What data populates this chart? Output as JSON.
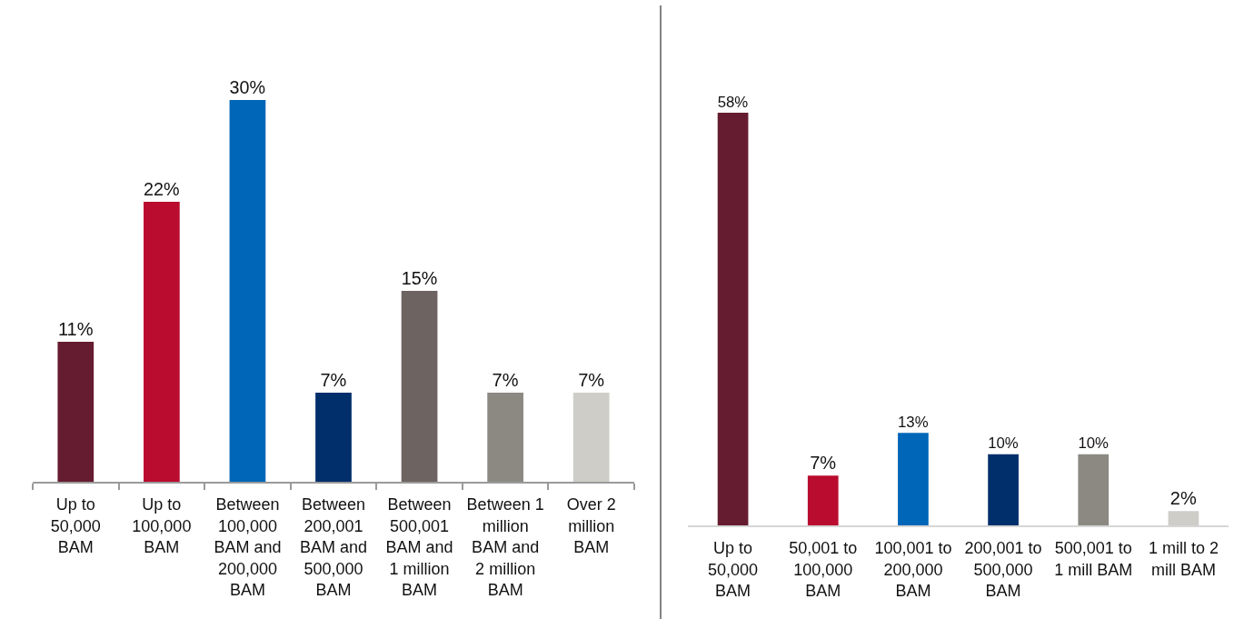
{
  "chart_data": [
    {
      "type": "bar",
      "categories": [
        "Up to 50,000 BAM",
        "Up to 100,000 BAM",
        "Between 100,000 BAM and 200,000 BAM",
        "Between 200,001 BAM and 500,000 BAM",
        "Between 500,001 BAM and 1 million BAM",
        "Between 1 million BAM and 2 million BAM",
        "Over 2 million BAM"
      ],
      "values": [
        11,
        22,
        30,
        7,
        15,
        7,
        7
      ],
      "colors": [
        "#661c30",
        "#ba0c2f",
        "#0066b8",
        "#002f6c",
        "#6d6462",
        "#8c8983",
        "#cfcdc8"
      ],
      "value_labels": [
        "11%",
        "22%",
        "30%",
        "7%",
        "15%",
        "7%",
        "7%"
      ]
    },
    {
      "type": "bar",
      "categories": [
        "Up to 50,000 BAM",
        "50,001 to 100,000 BAM",
        "100,001 to 200,000 BAM",
        "200,001 to 500,000 BAM",
        "500,001 to 1 mill BAM",
        "1 mill to 2 mill BAM"
      ],
      "values": [
        58,
        7,
        13,
        10,
        10,
        2
      ],
      "colors": [
        "#661c30",
        "#ba0c2f",
        "#0066b8",
        "#002f6c",
        "#8c8983",
        "#cfcdc8"
      ],
      "value_labels": [
        "58%",
        "7%",
        "13%",
        "10%",
        "10%",
        "2%"
      ]
    }
  ]
}
